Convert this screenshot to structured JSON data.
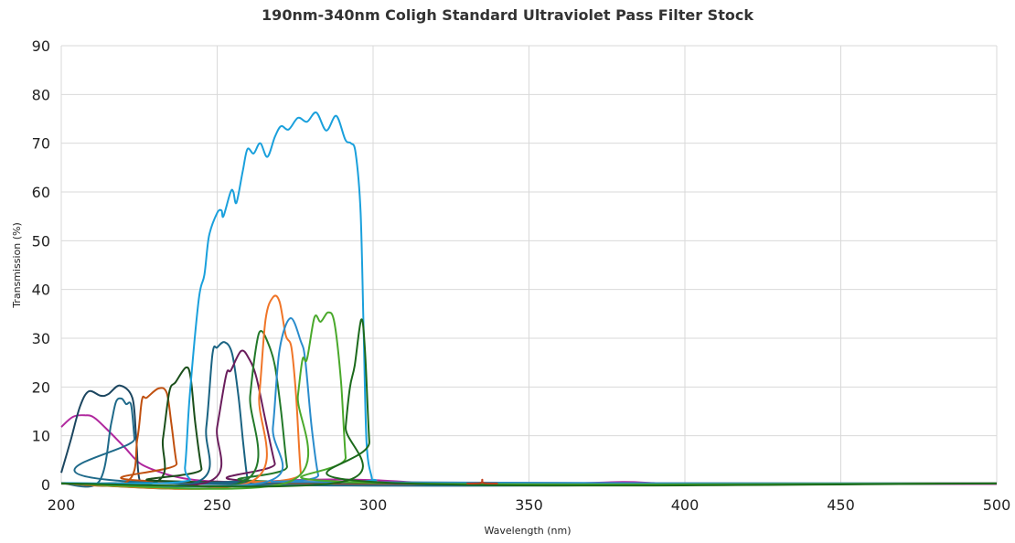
{
  "chart_data": {
    "type": "line",
    "title": "190nm-340nm Coligh Standard Ultraviolet Pass Filter Stock",
    "xlabel": "Wavelength (nm)",
    "ylabel": "Transmission (%)",
    "xlim": [
      200,
      500
    ],
    "ylim": [
      0,
      90
    ],
    "xticks": [
      200,
      250,
      300,
      350,
      400,
      450,
      500
    ],
    "yticks": [
      0,
      10,
      20,
      30,
      40,
      50,
      60,
      70,
      80,
      90
    ],
    "grid": true,
    "legend": "none",
    "series": [
      {
        "color": "#b0289e",
        "points": [
          [
            200,
            11.8
          ],
          [
            203.8,
            13.9
          ],
          [
            207.6,
            14.2
          ],
          [
            210.6,
            13.7
          ],
          [
            215.6,
            10.7
          ],
          [
            220.5,
            7.5
          ],
          [
            225.3,
            4.3
          ],
          [
            232.3,
            2.4
          ],
          [
            239,
            1.3
          ],
          [
            247,
            0.7
          ],
          [
            260,
            0.5
          ],
          [
            280,
            1.0
          ],
          [
            300,
            0.9
          ],
          [
            320,
            0.3
          ],
          [
            360,
            0.2
          ],
          [
            380,
            0.5
          ],
          [
            390,
            0.3
          ],
          [
            400,
            0.1
          ],
          [
            500,
            0.1
          ]
        ]
      },
      {
        "color": "#1c4660",
        "points": [
          [
            200,
            2.4
          ],
          [
            203,
            9
          ],
          [
            206,
            16
          ],
          [
            208.8,
            19.1
          ],
          [
            212.6,
            18.2
          ],
          [
            215,
            18.5
          ],
          [
            218.8,
            20.3
          ],
          [
            222.8,
            17.8
          ],
          [
            224,
            10
          ],
          [
            225.3,
            0.5
          ],
          [
            230,
            0.3
          ],
          [
            500,
            0.2
          ]
        ]
      },
      {
        "color": "#1f6a8a",
        "points": [
          [
            200,
            0.3
          ],
          [
            212,
            0.5
          ],
          [
            216,
            12.5
          ],
          [
            217.6,
            17
          ],
          [
            219.4,
            17.6
          ],
          [
            220.8,
            16.5
          ],
          [
            222.4,
            16.3
          ],
          [
            223.5,
            9.4
          ],
          [
            225,
            0.5
          ],
          [
            500,
            0.2
          ]
        ]
      },
      {
        "color": "#c0500f",
        "points": [
          [
            200,
            0.2
          ],
          [
            220.9,
            0.5
          ],
          [
            224.4,
            9.4
          ],
          [
            225.9,
            17.4
          ],
          [
            227.4,
            17.8
          ],
          [
            231.2,
            19.7
          ],
          [
            233.8,
            18.8
          ],
          [
            235.3,
            12.5
          ],
          [
            237,
            4.3
          ],
          [
            239,
            0.5
          ],
          [
            500,
            0.2
          ]
        ]
      },
      {
        "color": "#1b4f1b",
        "points": [
          [
            200,
            0.2
          ],
          [
            230.3,
            0.5
          ],
          [
            232.6,
            9.4
          ],
          [
            234.7,
            19.1
          ],
          [
            236.7,
            21
          ],
          [
            240,
            24
          ],
          [
            241.5,
            21.9
          ],
          [
            243,
            12.5
          ],
          [
            245,
            3.2
          ],
          [
            246.5,
            0.5
          ],
          [
            500,
            0.2
          ]
        ]
      },
      {
        "color": "#1aa0dc",
        "points": [
          [
            200,
            0.3
          ],
          [
            238,
            0.5
          ],
          [
            239.7,
            3.7
          ],
          [
            241.2,
            18.2
          ],
          [
            244.1,
            38
          ],
          [
            245.9,
            43
          ],
          [
            247.4,
            51
          ],
          [
            250,
            55.7
          ],
          [
            251.4,
            56.2
          ],
          [
            252,
            55
          ],
          [
            254.3,
            60
          ],
          [
            255.2,
            60
          ],
          [
            256.2,
            57.8
          ],
          [
            258.2,
            64.3
          ],
          [
            259.7,
            68.8
          ],
          [
            261.7,
            67.9
          ],
          [
            263.8,
            70
          ],
          [
            266.1,
            67.2
          ],
          [
            268.5,
            71.3
          ],
          [
            270.5,
            73.5
          ],
          [
            272.9,
            72.8
          ],
          [
            275.9,
            75.2
          ],
          [
            278.8,
            74.4
          ],
          [
            281.8,
            76.3
          ],
          [
            285,
            72.6
          ],
          [
            288.2,
            75.6
          ],
          [
            291.1,
            70.7
          ],
          [
            292.9,
            70
          ],
          [
            294.4,
            68
          ],
          [
            296,
            55.7
          ],
          [
            297,
            30.6
          ],
          [
            297.9,
            8.8
          ],
          [
            299.4,
            1.9
          ],
          [
            300.9,
            0.9
          ],
          [
            310,
            0.3
          ],
          [
            500,
            0.2
          ]
        ]
      },
      {
        "color": "#1a6382",
        "points": [
          [
            200,
            0.2
          ],
          [
            243.5,
            0.5
          ],
          [
            246.5,
            11.8
          ],
          [
            248.5,
            26.8
          ],
          [
            250,
            28.1
          ],
          [
            252.4,
            29.2
          ],
          [
            254.8,
            26.8
          ],
          [
            256.8,
            18.2
          ],
          [
            258.3,
            8.8
          ],
          [
            259.7,
            1.3
          ],
          [
            261,
            0.3
          ],
          [
            500,
            0.2
          ]
        ]
      },
      {
        "color": "#6a1d5c",
        "points": [
          [
            200,
            0.2
          ],
          [
            247,
            0.5
          ],
          [
            250,
            11.8
          ],
          [
            252.9,
            22.5
          ],
          [
            254.4,
            23.4
          ],
          [
            257.7,
            27.4
          ],
          [
            260.3,
            25.7
          ],
          [
            262.6,
            21.9
          ],
          [
            265.5,
            13.1
          ],
          [
            268.5,
            4.3
          ],
          [
            270.5,
            0.5
          ],
          [
            500,
            0.2
          ]
        ]
      },
      {
        "color": "#23792a",
        "points": [
          [
            200,
            0.2
          ],
          [
            258.2,
            0.5
          ],
          [
            260.6,
            18.2
          ],
          [
            262.6,
            28.7
          ],
          [
            264.1,
            31.5
          ],
          [
            266.5,
            28.7
          ],
          [
            268.5,
            24.4
          ],
          [
            270.5,
            15
          ],
          [
            272.4,
            3.7
          ],
          [
            273.8,
            0.5
          ],
          [
            500,
            0.2
          ]
        ]
      },
      {
        "color": "#f07528",
        "points": [
          [
            200,
            0.2
          ],
          [
            260.6,
            0.5
          ],
          [
            263.5,
            18.2
          ],
          [
            265.5,
            33.8
          ],
          [
            267.9,
            38.4
          ],
          [
            270,
            37.5
          ],
          [
            272,
            30.6
          ],
          [
            273.8,
            28.1
          ],
          [
            275.3,
            18.2
          ],
          [
            276.8,
            2.4
          ],
          [
            277.9,
            0.5
          ],
          [
            500,
            0.2
          ]
        ]
      },
      {
        "color": "#2a8ccc",
        "points": [
          [
            200,
            0.2
          ],
          [
            265.5,
            0.5
          ],
          [
            267.9,
            11.8
          ],
          [
            270,
            27.6
          ],
          [
            273.5,
            34.1
          ],
          [
            276.8,
            29.4
          ],
          [
            278.2,
            25.7
          ],
          [
            280.3,
            11.8
          ],
          [
            282.4,
            1.9
          ],
          [
            283.8,
            0.5
          ],
          [
            500,
            0.2
          ]
        ]
      },
      {
        "color": "#4aa92c",
        "points": [
          [
            200,
            0.2
          ],
          [
            272.9,
            0.5
          ],
          [
            275.9,
            18.2
          ],
          [
            277.4,
            25.7
          ],
          [
            278.8,
            25.7
          ],
          [
            281.2,
            34.3
          ],
          [
            283.2,
            33.4
          ],
          [
            285.6,
            35.3
          ],
          [
            287.6,
            33.2
          ],
          [
            289.7,
            21.2
          ],
          [
            291.2,
            5.6
          ],
          [
            292.6,
            0.5
          ],
          [
            500,
            0.2
          ]
        ]
      },
      {
        "color": "#1c6a1c",
        "points": [
          [
            200,
            0.2
          ],
          [
            289.7,
            0.5
          ],
          [
            291.2,
            11.8
          ],
          [
            292.6,
            20
          ],
          [
            294.1,
            24.4
          ],
          [
            296.2,
            33.8
          ],
          [
            297.4,
            27.6
          ],
          [
            298.8,
            8.8
          ],
          [
            300.3,
            0.5
          ],
          [
            500,
            0.2
          ]
        ]
      },
      {
        "color": "#c0401f",
        "points": [
          [
            330,
            0.2
          ],
          [
            334.5,
            0.3
          ],
          [
            335,
            1.0
          ],
          [
            335.5,
            0.3
          ],
          [
            340,
            0.2
          ]
        ]
      }
    ]
  }
}
